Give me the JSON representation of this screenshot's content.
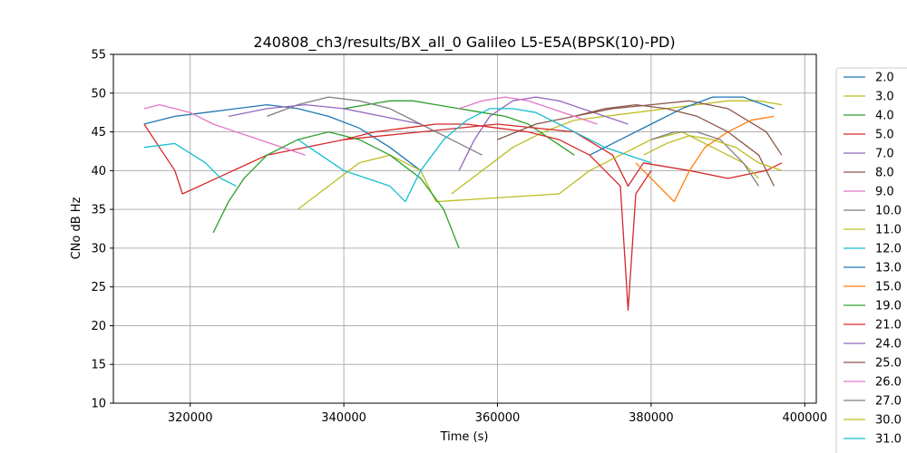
{
  "chart_data": {
    "type": "line",
    "title": "240808_ch3/results/BX_all_0 Galileo L5-E5A(BPSK(10)-PD)",
    "xlabel": "Time (s)",
    "ylabel": "CNo dB Hz",
    "xlim": [
      310000,
      401500
    ],
    "ylim": [
      10,
      55
    ],
    "xticks": [
      320000,
      340000,
      360000,
      380000,
      400000
    ],
    "xtick_labels": [
      "320000",
      "340000",
      "360000",
      "380000",
      "400000"
    ],
    "yticks": [
      10,
      15,
      20,
      25,
      30,
      35,
      40,
      45,
      50,
      55
    ],
    "ytick_labels": [
      "10",
      "15",
      "20",
      "25",
      "30",
      "35",
      "40",
      "45",
      "50",
      "55"
    ],
    "grid": true,
    "legend_placement": "right-outside",
    "series": [
      {
        "name": "2.0",
        "color": "#1f77b4",
        "x": [
          314000,
          318000,
          322000,
          326000,
          330000,
          334000,
          338000,
          342000,
          346000,
          350000
        ],
        "y": [
          46,
          47,
          47.5,
          48,
          48.5,
          48,
          47,
          45.5,
          43,
          40
        ]
      },
      {
        "name": "3.0",
        "color": "#bcbd22",
        "x": [
          354000,
          358000,
          362000,
          366000,
          370000,
          374000,
          378000,
          382000,
          386000,
          390000,
          394000,
          397000
        ],
        "y": [
          37,
          40,
          43,
          45,
          46.5,
          47,
          47.5,
          48,
          48.5,
          49,
          49,
          48.5
        ]
      },
      {
        "name": "4.0",
        "color": "#2ca02c",
        "x": [
          340000,
          343000,
          346000,
          349000,
          352000,
          355000,
          358000,
          361000,
          364000,
          367000,
          370000
        ],
        "y": [
          48,
          48.5,
          49,
          49,
          48.5,
          48,
          47.5,
          47,
          46,
          44,
          42
        ]
      },
      {
        "name": "5.0",
        "color": "#d62728",
        "x": [
          314000,
          316000,
          318000,
          319000,
          330000,
          340000,
          350000,
          360000,
          370000,
          375000,
          377000,
          379000,
          385000,
          390000,
          395000,
          397000
        ],
        "y": [
          46,
          43,
          40,
          37,
          42,
          44,
          45,
          46,
          45,
          42,
          38,
          41,
          40,
          39,
          40,
          41
        ]
      },
      {
        "name": "7.0",
        "color": "#9467bd",
        "x": [
          355000,
          357000,
          359000,
          362000,
          365000,
          368000,
          371000,
          374000,
          377000
        ],
        "y": [
          40,
          44,
          47,
          49,
          49.5,
          49,
          48,
          47,
          46
        ]
      },
      {
        "name": "8.0",
        "color": "#8c564b",
        "x": [
          360000,
          365000,
          370000,
          375000,
          380000,
          385000,
          390000,
          395000,
          397000
        ],
        "y": [
          44,
          46,
          47,
          48,
          48.5,
          49,
          48,
          45,
          42
        ]
      },
      {
        "name": "9.0",
        "color": "#e377c2",
        "x": [
          314000,
          316000,
          318000,
          320000,
          323000,
          326000,
          329000,
          332000,
          335000
        ],
        "y": [
          48,
          48.5,
          48,
          47.5,
          46,
          45,
          44,
          43,
          42
        ]
      },
      {
        "name": "10.0",
        "color": "#7f7f7f",
        "x": [
          330000,
          334000,
          338000,
          342000,
          346000,
          350000,
          354000,
          358000
        ],
        "y": [
          47,
          48.5,
          49.5,
          49,
          48,
          46,
          44,
          42
        ]
      },
      {
        "name": "11.0",
        "color": "#bcbd22",
        "x": [
          334000,
          338000,
          342000,
          346000,
          350000,
          352000,
          368000,
          372000,
          376000,
          380000,
          384000,
          388000,
          392000,
          394000
        ],
        "y": [
          35,
          38,
          41,
          42,
          40,
          36,
          37,
          40,
          42,
          44,
          45,
          43,
          41,
          39
        ]
      },
      {
        "name": "12.0",
        "color": "#17becf",
        "x": [
          314000,
          318000,
          322000,
          324000,
          326000
        ],
        "y": [
          43,
          43.5,
          41,
          39,
          38
        ]
      },
      {
        "name": "13.0",
        "color": "#1f77b4",
        "x": [
          372000,
          376000,
          380000,
          384000,
          388000,
          392000,
          396000
        ],
        "y": [
          42,
          44,
          46,
          48,
          49.5,
          49.5,
          48
        ]
      },
      {
        "name": "15.0",
        "color": "#ff7f0e",
        "x": [
          378000,
          380000,
          382000,
          383000,
          385000,
          387000,
          390000,
          393000,
          396000
        ],
        "y": [
          41,
          39,
          37,
          36,
          40,
          43,
          45,
          46.5,
          47
        ]
      },
      {
        "name": "19.0",
        "color": "#2ca02c",
        "x": [
          323000,
          325000,
          327000,
          330000,
          334000,
          338000,
          342000,
          346000,
          350000,
          353000,
          355000
        ],
        "y": [
          32,
          36,
          39,
          42,
          44,
          45,
          44,
          42,
          39,
          35,
          30
        ]
      },
      {
        "name": "21.0",
        "color": "#d62728",
        "x": [
          340000,
          344000,
          348000,
          352000,
          356000,
          360000,
          364000,
          368000,
          372000,
          376000,
          377000,
          378000,
          380000
        ],
        "y": [
          44,
          45,
          45.5,
          46,
          46,
          45.5,
          45,
          44,
          42,
          38,
          22,
          37,
          40
        ]
      },
      {
        "name": "24.0",
        "color": "#9467bd",
        "x": [
          325000,
          330000,
          335000,
          340000,
          345000,
          350000
        ],
        "y": [
          47,
          48,
          48.5,
          48,
          47,
          46
        ]
      },
      {
        "name": "25.0",
        "color": "#8c564b",
        "x": [
          370000,
          374000,
          378000,
          382000,
          386000,
          390000,
          394000,
          396000
        ],
        "y": [
          47,
          48,
          48.5,
          48,
          47,
          45,
          42,
          38
        ]
      },
      {
        "name": "26.0",
        "color": "#e377c2",
        "x": [
          355000,
          358000,
          361000,
          364000,
          367000,
          370000,
          373000
        ],
        "y": [
          48,
          49,
          49.5,
          49,
          48,
          47,
          46
        ]
      },
      {
        "name": "27.0",
        "color": "#7f7f7f",
        "x": [
          380000,
          383000,
          386000,
          389000,
          392000,
          394000
        ],
        "y": [
          44,
          45,
          45,
          44,
          41,
          38
        ]
      },
      {
        "name": "30.0",
        "color": "#bcbd22",
        "x": [
          379000,
          382000,
          385000,
          388000,
          391000,
          394000,
          397000
        ],
        "y": [
          42,
          43.5,
          44.5,
          44,
          43,
          41,
          40
        ]
      },
      {
        "name": "31.0",
        "color": "#17becf",
        "x": [
          334000,
          337000,
          340000,
          343000,
          346000,
          348000,
          350000,
          353000,
          356000,
          359000,
          362000,
          365000,
          368000,
          371000,
          374000,
          377000,
          380000
        ],
        "y": [
          44,
          42,
          40,
          39,
          38,
          36,
          40,
          44,
          46.5,
          48,
          48,
          47.5,
          46,
          44.5,
          43,
          42,
          41
        ]
      }
    ]
  }
}
